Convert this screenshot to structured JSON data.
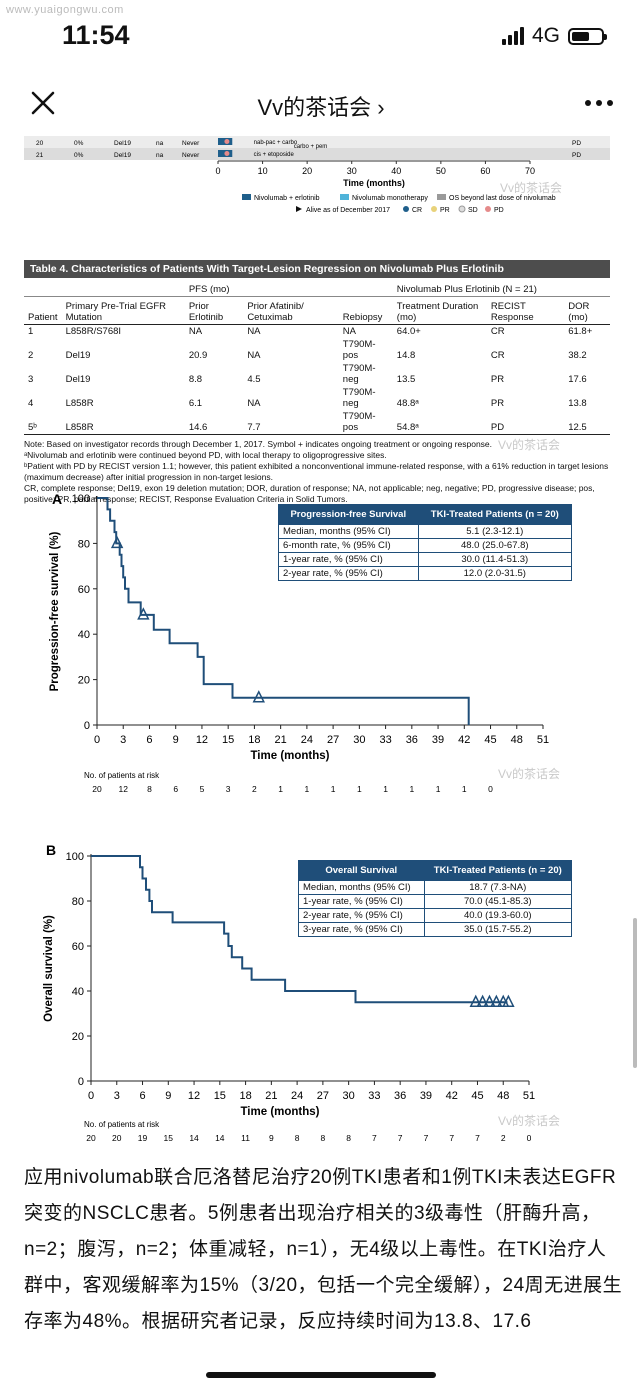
{
  "watermark_url": "www.yuaigongwu.com",
  "status_bar": {
    "time": "11:54",
    "network": "4G",
    "battery_level": 0.6
  },
  "nav": {
    "title": "Vv的茶话会 ›",
    "close_icon": "close-icon",
    "more_icon": "more-icon"
  },
  "swimmer": {
    "rows": [
      {
        "patient": "20",
        "pct": "0%",
        "mutation": "Del19",
        "rebiopsy": "na",
        "smoke": "Never",
        "note": "nab-pac + carbo",
        "note2": "carbo + pem",
        "response": "PD"
      },
      {
        "patient": "21",
        "pct": "0%",
        "mutation": "Del19",
        "rebiopsy": "na",
        "smoke": "Never",
        "note": "cis + etoposide",
        "note2": "",
        "response": "PD"
      }
    ],
    "ticks": [
      "0",
      "10",
      "20",
      "30",
      "40",
      "50",
      "60",
      "70"
    ],
    "xlabel": "Time (months)",
    "legend1": [
      "Nivolumab + erlotinib",
      "Nivolumab monotherapy",
      "OS beyond last dose of nivolumab"
    ],
    "legend2": [
      "Alive as of December 2017",
      "CR",
      "PR",
      "SD",
      "PD"
    ],
    "colors": {
      "combo": "#1f5f8b",
      "mono": "#4fb3d9",
      "os": "#9a9a9a",
      "pr": "#e8d27a",
      "pd": "#e58a8a"
    }
  },
  "watermark_text": "Vv的茶话会",
  "table4": {
    "title": "Table 4. Characteristics of Patients With Target-Lesion Regression on Nivolumab Plus Erlotinib",
    "group_pfs": "PFS (mo)",
    "group_combo": "Nivolumab Plus Erlotinib (N = 21)",
    "headers": [
      "Patient",
      "Primary Pre-Trial EGFR Mutation",
      "Prior Erlotinib",
      "Prior Afatinib/ Cetuximab",
      "Rebiopsy",
      "Treatment Duration (mo)",
      "RECIST Response",
      "DOR (mo)"
    ],
    "rows": [
      [
        "1",
        "L858R/S768I",
        "NA",
        "NA",
        "NA",
        "64.0+",
        "CR",
        "61.8+"
      ],
      [
        "2",
        "Del19",
        "20.9",
        "NA",
        "T790M-pos",
        "14.8",
        "CR",
        "38.2"
      ],
      [
        "3",
        "Del19",
        "8.8",
        "4.5",
        "T790M-neg",
        "13.5",
        "PR",
        "17.6"
      ],
      [
        "4",
        "L858R",
        "6.1",
        "NA",
        "T790M-neg",
        "48.8ᵃ",
        "PR",
        "13.8"
      ],
      [
        "5ᵇ",
        "L858R",
        "14.6",
        "7.7",
        "T790M-pos",
        "54.8ᵃ",
        "PD",
        "12.5"
      ]
    ],
    "notes": [
      "Note: Based on investigator records through December 1, 2017. Symbol + indicates ongoing treatment or ongoing response.",
      "ᵃNivolumab and erlotinib were continued beyond PD, with local therapy to oligoprogressive sites.",
      "ᵇPatient with PD by RECIST version 1.1; however, this patient exhibited a nonconventional immune-related response, with a 61% reduction in target lesions (maximum decrease) after initial progression in non-target lesions.",
      "CR, complete response; Del19, exon 19 deletion mutation; DOR, duration of response; NA, not applicable; neg, negative; PD, progressive disease; pos, positive; PR, partial response; RECIST, Response Evaluation Criteria in Solid Tumors."
    ]
  },
  "chart_data": [
    {
      "type": "line",
      "panel": "A",
      "ylabel": "Progression-free survival (%)",
      "xlabel": "Time (months)",
      "xlim": [
        0,
        51
      ],
      "ylim": [
        0,
        100
      ],
      "xticks": [
        "0",
        "3",
        "6",
        "9",
        "12",
        "15",
        "18",
        "21",
        "24",
        "27",
        "30",
        "33",
        "36",
        "39",
        "42",
        "45",
        "48",
        "51"
      ],
      "yticks": [
        "0",
        "20",
        "40",
        "60",
        "80",
        "100"
      ],
      "steps": [
        [
          0,
          100
        ],
        [
          1.2,
          100
        ],
        [
          1.2,
          95
        ],
        [
          1.5,
          95
        ],
        [
          1.5,
          90
        ],
        [
          2,
          90
        ],
        [
          2,
          85
        ],
        [
          2.2,
          85
        ],
        [
          2.2,
          80
        ],
        [
          2.6,
          80
        ],
        [
          2.6,
          75
        ],
        [
          2.8,
          75
        ],
        [
          2.8,
          70
        ],
        [
          3,
          70
        ],
        [
          3,
          65
        ],
        [
          3.2,
          65
        ],
        [
          3.2,
          60
        ],
        [
          3.6,
          60
        ],
        [
          3.6,
          54
        ],
        [
          5,
          54
        ],
        [
          5,
          48.5
        ],
        [
          6.5,
          48.5
        ],
        [
          6.5,
          42
        ],
        [
          8.3,
          42
        ],
        [
          8.3,
          36
        ],
        [
          11.5,
          36
        ],
        [
          11.5,
          30
        ],
        [
          12.2,
          30
        ],
        [
          12.2,
          18
        ],
        [
          15.5,
          18
        ],
        [
          15.5,
          12
        ],
        [
          42.5,
          12
        ],
        [
          42.5,
          0
        ]
      ],
      "censored": [
        [
          2.3,
          80
        ],
        [
          5.3,
          48.5
        ],
        [
          18.5,
          12
        ]
      ],
      "risk_label": "No. of patients at risk",
      "risk": [
        "20",
        "12",
        "8",
        "6",
        "5",
        "3",
        "2",
        "1",
        "1",
        "1",
        "1",
        "1",
        "1",
        "1",
        "1",
        "0"
      ],
      "table": {
        "head": [
          "Progression-free Survival",
          "TKI-Treated Patients (n = 20)"
        ],
        "rows": [
          [
            "Median, months (95% CI)",
            "5.1 (2.3-12.1)"
          ],
          [
            "6-month rate, % (95% CI)",
            "48.0 (25.0-67.8)"
          ],
          [
            "1-year rate, % (95% CI)",
            "30.0 (11.4-51.3)"
          ],
          [
            "2-year rate, % (95% CI)",
            "12.0 (2.0-31.5)"
          ]
        ]
      },
      "color": "#1f4e79"
    },
    {
      "type": "line",
      "panel": "B",
      "ylabel": "Overall survival (%)",
      "xlabel": "Time (months)",
      "xlim": [
        0,
        51
      ],
      "ylim": [
        0,
        100
      ],
      "xticks": [
        "0",
        "3",
        "6",
        "9",
        "12",
        "15",
        "18",
        "21",
        "24",
        "27",
        "30",
        "33",
        "36",
        "39",
        "42",
        "45",
        "48",
        "51"
      ],
      "yticks": [
        "0",
        "20",
        "40",
        "60",
        "80",
        "100"
      ],
      "steps": [
        [
          0,
          100
        ],
        [
          5.7,
          100
        ],
        [
          5.7,
          95
        ],
        [
          6,
          95
        ],
        [
          6,
          90
        ],
        [
          6.4,
          90
        ],
        [
          6.4,
          85
        ],
        [
          6.8,
          85
        ],
        [
          6.8,
          80
        ],
        [
          7.1,
          80
        ],
        [
          7.1,
          75
        ],
        [
          9.5,
          75
        ],
        [
          9.5,
          70.5
        ],
        [
          15.5,
          70.5
        ],
        [
          15.5,
          65.5
        ],
        [
          16,
          65.5
        ],
        [
          16,
          60
        ],
        [
          16.4,
          60
        ],
        [
          16.4,
          55
        ],
        [
          17.6,
          55
        ],
        [
          17.6,
          50
        ],
        [
          18.7,
          50
        ],
        [
          18.7,
          45
        ],
        [
          22.6,
          45
        ],
        [
          22.6,
          40
        ],
        [
          30.8,
          40
        ],
        [
          30.8,
          35
        ],
        [
          48.5,
          35
        ]
      ],
      "censored": [
        [
          44.8,
          35
        ],
        [
          45.6,
          35
        ],
        [
          46.4,
          35
        ],
        [
          47.2,
          35
        ],
        [
          48,
          35
        ],
        [
          48.6,
          35
        ]
      ],
      "risk_label": "No. of patients at risk",
      "risk": [
        "20",
        "20",
        "19",
        "15",
        "14",
        "14",
        "11",
        "9",
        "8",
        "8",
        "8",
        "7",
        "7",
        "7",
        "7",
        "7",
        "2",
        "0"
      ],
      "table": {
        "head": [
          "Overall Survival",
          "TKI-Treated Patients (n = 20)"
        ],
        "rows": [
          [
            "Median, months (95% CI)",
            "18.7 (7.3-NA)"
          ],
          [
            "1-year rate, % (95% CI)",
            "70.0 (45.1-85.3)"
          ],
          [
            "2-year rate, % (95% CI)",
            "40.0 (19.3-60.0)"
          ],
          [
            "3-year rate, % (95% CI)",
            "35.0 (15.7-55.2)"
          ]
        ]
      },
      "color": "#1f4e79"
    }
  ],
  "body_text": "应用nivolumab联合厄洛替尼治疗20例TKI患者和1例TKI未表达EGFR突变的NSCLC患者。5例患者出现治疗相关的3级毒性（肝酶升高，n=2；腹泻，n=2；体重减轻，n=1），无4级以上毒性。在TKI治疗人群中，客观缓解率为15%（3/20，包括一个完全缓解），24周无进展生存率为48%。根据研究者记录，反应持续时间为13.8、17.6"
}
